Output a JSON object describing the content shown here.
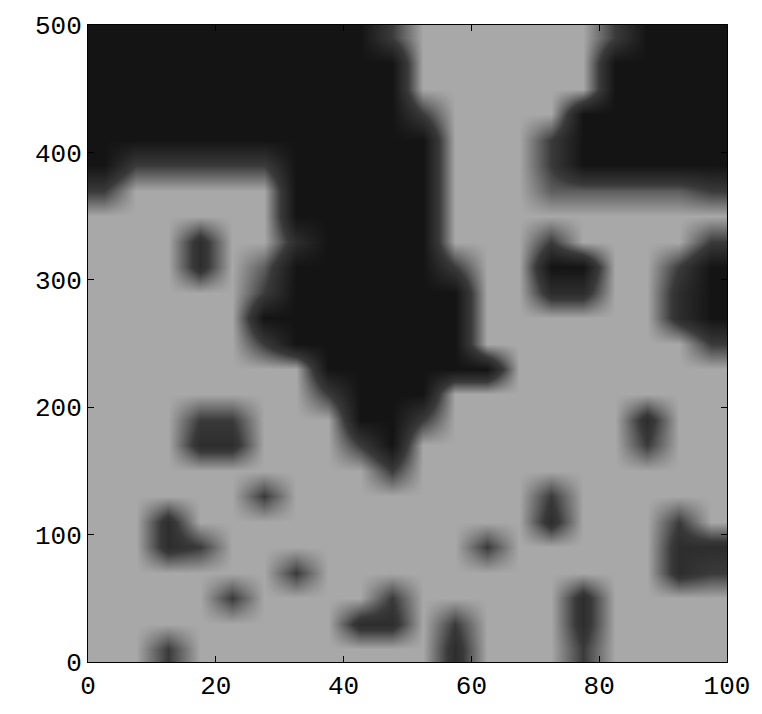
{
  "chart_data": {
    "type": "heatmap",
    "x": [
      2.5,
      7.5,
      12.5,
      17.5,
      22.5,
      27.5,
      32.5,
      37.5,
      42.5,
      47.5,
      52.5,
      57.5,
      62.5,
      67.5,
      72.5,
      77.5,
      82.5,
      87.5,
      92.5,
      97.5
    ],
    "y": [
      10,
      30,
      50,
      70,
      90,
      110,
      130,
      150,
      170,
      190,
      210,
      230,
      250,
      270,
      290,
      310,
      330,
      350,
      370,
      390,
      410,
      430,
      450,
      470,
      490
    ],
    "z": [
      [
        0.6,
        0.6,
        0.3,
        0.6,
        0.6,
        0.6,
        0.6,
        0.6,
        0.6,
        0.6,
        0.6,
        0.2,
        0.6,
        0.6,
        0.6,
        0.3,
        0.6,
        0.6,
        0.6,
        0.6
      ],
      [
        0.6,
        0.6,
        0.6,
        0.6,
        0.6,
        0.6,
        0.6,
        0.6,
        0.2,
        0.2,
        0.6,
        0.3,
        0.6,
        0.6,
        0.6,
        0.2,
        0.6,
        0.6,
        0.6,
        0.6
      ],
      [
        0.6,
        0.6,
        0.6,
        0.6,
        0.3,
        0.6,
        0.6,
        0.6,
        0.6,
        0.3,
        0.6,
        0.6,
        0.6,
        0.6,
        0.6,
        0.2,
        0.6,
        0.6,
        0.6,
        0.6
      ],
      [
        0.6,
        0.6,
        0.6,
        0.6,
        0.6,
        0.6,
        0.3,
        0.6,
        0.6,
        0.6,
        0.6,
        0.6,
        0.6,
        0.6,
        0.6,
        0.6,
        0.6,
        0.6,
        0.2,
        0.3
      ],
      [
        0.6,
        0.6,
        0.2,
        0.3,
        0.6,
        0.6,
        0.6,
        0.6,
        0.6,
        0.6,
        0.6,
        0.6,
        0.3,
        0.6,
        0.6,
        0.6,
        0.6,
        0.6,
        0.2,
        0.2
      ],
      [
        0.6,
        0.6,
        0.2,
        0.6,
        0.6,
        0.6,
        0.6,
        0.6,
        0.6,
        0.6,
        0.6,
        0.6,
        0.6,
        0.6,
        0.2,
        0.6,
        0.6,
        0.6,
        0.3,
        0.6
      ],
      [
        0.6,
        0.6,
        0.6,
        0.6,
        0.6,
        0.3,
        0.6,
        0.6,
        0.6,
        0.6,
        0.6,
        0.6,
        0.6,
        0.6,
        0.3,
        0.6,
        0.6,
        0.6,
        0.6,
        0.6
      ],
      [
        0.6,
        0.6,
        0.6,
        0.6,
        0.6,
        0.6,
        0.6,
        0.6,
        0.6,
        0.3,
        0.6,
        0.6,
        0.6,
        0.6,
        0.6,
        0.6,
        0.6,
        0.6,
        0.6,
        0.6
      ],
      [
        0.6,
        0.6,
        0.6,
        0.2,
        0.2,
        0.6,
        0.6,
        0.6,
        0.3,
        0,
        0.6,
        0.6,
        0.6,
        0.6,
        0.6,
        0.6,
        0.6,
        0.3,
        0.6,
        0.6
      ],
      [
        0.6,
        0.6,
        0.6,
        0.3,
        0.3,
        0.6,
        0.6,
        0.6,
        0,
        0,
        0.3,
        0.6,
        0.6,
        0.6,
        0.6,
        0.6,
        0.6,
        0.2,
        0.6,
        0.6
      ],
      [
        0.6,
        0.6,
        0.6,
        0.6,
        0.6,
        0.6,
        0.6,
        0.3,
        0,
        0,
        0,
        0.6,
        0.6,
        0.6,
        0.6,
        0.6,
        0.6,
        0.6,
        0.6,
        0.6
      ],
      [
        0.6,
        0.6,
        0.6,
        0.6,
        0.6,
        0.6,
        0.6,
        0,
        0,
        0,
        0,
        0,
        0,
        0.6,
        0.6,
        0.6,
        0.6,
        0.6,
        0.6,
        0.6
      ],
      [
        0.6,
        0.6,
        0.6,
        0.6,
        0.6,
        0.3,
        0,
        0,
        0,
        0,
        0,
        0,
        0.6,
        0.6,
        0.6,
        0.6,
        0.6,
        0.6,
        0.6,
        0.3
      ],
      [
        0.6,
        0.6,
        0.6,
        0.6,
        0.6,
        0,
        0,
        0,
        0,
        0,
        0,
        0,
        0.6,
        0.6,
        0.6,
        0.6,
        0.6,
        0.6,
        0.2,
        0
      ],
      [
        0.6,
        0.6,
        0.6,
        0.6,
        0.6,
        0.3,
        0,
        0,
        0,
        0,
        0,
        0,
        0.6,
        0.6,
        0.2,
        0.2,
        0.6,
        0.6,
        0.2,
        0
      ],
      [
        0.6,
        0.6,
        0.6,
        0.2,
        0.6,
        0.4,
        0,
        0,
        0,
        0,
        0,
        0.3,
        0.6,
        0.6,
        0,
        0,
        0.6,
        0.6,
        0.3,
        0
      ],
      [
        0.6,
        0.6,
        0.6,
        0.2,
        0.6,
        0.6,
        0.2,
        0,
        0,
        0,
        0,
        0.6,
        0.6,
        0.6,
        0.3,
        0.6,
        0.6,
        0.6,
        0.6,
        0.3
      ],
      [
        0.6,
        0.6,
        0.6,
        0.6,
        0.6,
        0.6,
        0,
        0,
        0,
        0,
        0,
        0.6,
        0.6,
        0.6,
        0.6,
        0.6,
        0.6,
        0.6,
        0.6,
        0.6
      ],
      [
        0.3,
        0.6,
        0.6,
        0.6,
        0.6,
        0.6,
        0,
        0,
        0,
        0,
        0,
        0.6,
        0.6,
        0.6,
        0.4,
        0.4,
        0.4,
        0.4,
        0.4,
        0.3
      ],
      [
        0,
        0.3,
        0.3,
        0.3,
        0.3,
        0.3,
        0,
        0,
        0,
        0,
        0,
        0.6,
        0.6,
        0.6,
        0.3,
        0,
        0,
        0,
        0,
        0
      ],
      [
        0,
        0,
        0,
        0,
        0,
        0,
        0,
        0,
        0,
        0,
        0,
        0.6,
        0.6,
        0.6,
        0.3,
        0,
        0,
        0,
        0,
        0
      ],
      [
        0,
        0,
        0,
        0,
        0,
        0,
        0,
        0,
        0,
        0,
        0.3,
        0.6,
        0.6,
        0.6,
        0.6,
        0,
        0,
        0,
        0,
        0
      ],
      [
        0,
        0,
        0,
        0,
        0,
        0,
        0,
        0,
        0,
        0,
        0.6,
        0.6,
        0.6,
        0.6,
        0.6,
        0.6,
        0,
        0,
        0,
        0
      ],
      [
        0,
        0,
        0,
        0,
        0,
        0,
        0,
        0,
        0,
        0,
        0.6,
        0.6,
        0.6,
        0.6,
        0.6,
        0.6,
        0,
        0,
        0,
        0
      ],
      [
        0,
        0,
        0,
        0,
        0,
        0,
        0,
        0,
        0,
        0.3,
        0.6,
        0.6,
        0.6,
        0.6,
        0.6,
        0.6,
        0.3,
        0,
        0,
        0
      ]
    ],
    "zlim": [
      0,
      1
    ],
    "xlim": [
      0,
      100
    ],
    "ylim": [
      0,
      500
    ],
    "xticks": [
      0,
      20,
      40,
      60,
      80,
      100
    ],
    "yticks": [
      0,
      100,
      200,
      300,
      400,
      500
    ],
    "grid": false
  }
}
